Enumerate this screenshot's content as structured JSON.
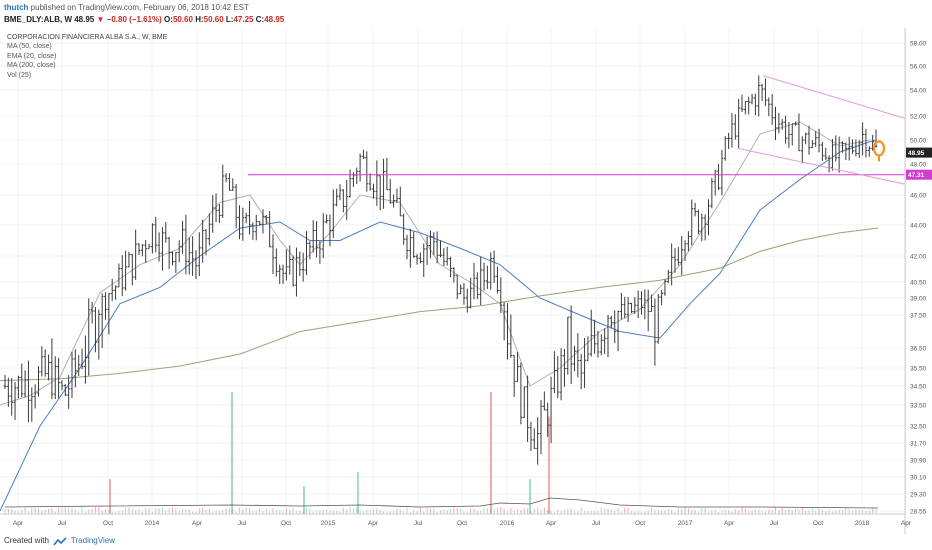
{
  "header": {
    "user": "thutch",
    "published": "published on TradingView.com, February 06, 2018 10:42 EST",
    "symbol": "BME_DLY:ALB, W",
    "last": "48.95",
    "change": "−0.80 (−1.61%)",
    "open_label": "O:",
    "open": "50.60",
    "high_label": "H:",
    "high": "50.60",
    "low_label": "L:",
    "low": "47.25",
    "close_label": "C:",
    "close": "48.95"
  },
  "legend": {
    "title": "CORPORACION FINANCIERA ALBA S.A., W, BME",
    "items": [
      "MA (50, close)",
      "EMA (20, close)",
      "MA (200, close)",
      "Vol (25)"
    ]
  },
  "footer": {
    "created_with": "Created with",
    "brand": "TradingView"
  },
  "colors": {
    "bars": "#3a3a3a",
    "ma50": "#4a7fc1",
    "ema20": "#b0b0b0",
    "ma200": "#8fa878",
    "channel": "#e59ad8",
    "support": "#d23cd2",
    "vol_up": "#66c2a5",
    "vol_down": "#e57373",
    "marker": "#f5941d"
  },
  "chart_data": {
    "type": "ohlc",
    "y_axis": {
      "min": 28.55,
      "max": 58.0,
      "ticks": [
        "58.00",
        "56.00",
        "54.00",
        "52.00",
        "50.00",
        "48.00",
        "46.00",
        "44.00",
        "42.00",
        "40.50",
        "39.00",
        "37.50",
        "36.50",
        "35.50",
        "34.50",
        "33.50",
        "32.50",
        "31.70",
        "30.90",
        "30.10",
        "29.30",
        "28.55"
      ],
      "price_labels": [
        "48.95",
        "47.31"
      ]
    },
    "x_axis": {
      "ticks": [
        "Apr",
        "Jul",
        "Oct",
        "2014",
        "Apr",
        "Jul",
        "Oct",
        "2015",
        "Apr",
        "Jul",
        "Oct",
        "2016",
        "Apr",
        "Jul",
        "Oct",
        "2017",
        "Apr",
        "Jul",
        "Oct",
        "2018",
        "Apr"
      ],
      "start": "2013-03-01",
      "end": "2018-04-15"
    },
    "ohlc_weekly_close_sketch": [
      [
        "2013-03",
        34.5
      ],
      [
        "2013-05",
        34.8
      ],
      [
        "2013-06",
        35.2
      ],
      [
        "2013-07",
        34.0
      ],
      [
        "2013-08",
        35.8
      ],
      [
        "2013-09",
        37.5
      ],
      [
        "2013-10",
        39.5
      ],
      [
        "2013-11",
        40.8
      ],
      [
        "2013-12",
        42.3
      ],
      [
        "2014-01",
        43.8
      ],
      [
        "2014-02",
        42.5
      ],
      [
        "2014-03",
        42.8
      ],
      [
        "2014-04",
        41.5
      ],
      [
        "2014-05",
        44.5
      ],
      [
        "2014-06",
        46.8
      ],
      [
        "2014-07",
        43.5
      ],
      [
        "2014-08",
        44.8
      ],
      [
        "2014-09",
        43.0
      ],
      [
        "2014-10",
        40.5
      ],
      [
        "2014-11",
        41.8
      ],
      [
        "2014-12",
        42.8
      ],
      [
        "2015-01",
        44.5
      ],
      [
        "2015-02",
        46.0
      ],
      [
        "2015-03",
        48.5
      ],
      [
        "2015-04",
        47.0
      ],
      [
        "2015-05",
        46.0
      ],
      [
        "2015-06",
        43.5
      ],
      [
        "2015-07",
        42.5
      ],
      [
        "2015-08",
        43.0
      ],
      [
        "2015-09",
        41.0
      ],
      [
        "2015-10",
        39.0
      ],
      [
        "2015-11",
        40.0
      ],
      [
        "2015-12",
        42.0
      ],
      [
        "2016-01",
        37.0
      ],
      [
        "2016-02",
        33.5
      ],
      [
        "2016-03",
        32.0
      ],
      [
        "2016-04",
        34.0
      ],
      [
        "2016-05",
        36.5
      ],
      [
        "2016-06",
        35.0
      ],
      [
        "2016-07",
        37.0
      ],
      [
        "2016-08",
        38.0
      ],
      [
        "2016-09",
        37.5
      ],
      [
        "2016-10",
        38.5
      ],
      [
        "2016-11",
        37.5
      ],
      [
        "2016-12",
        41.0
      ],
      [
        "2017-01",
        44.0
      ],
      [
        "2017-02",
        44.5
      ],
      [
        "2017-03",
        46.5
      ],
      [
        "2017-04",
        50.5
      ],
      [
        "2017-05",
        52.5
      ],
      [
        "2017-06",
        54.0
      ],
      [
        "2017-07",
        52.0
      ],
      [
        "2017-08",
        50.5
      ],
      [
        "2017-09",
        50.0
      ],
      [
        "2017-10",
        49.5
      ],
      [
        "2017-11",
        48.5
      ],
      [
        "2017-12",
        49.0
      ],
      [
        "2018-01",
        50.5
      ],
      [
        "2018-02",
        48.95
      ]
    ],
    "ema20": [
      [
        0,
        33.5
      ],
      [
        30,
        34.0
      ],
      [
        60,
        35.0
      ],
      [
        100,
        39.5
      ],
      [
        140,
        41.5
      ],
      [
        180,
        42.5
      ],
      [
        220,
        45.5
      ],
      [
        250,
        46.0
      ],
      [
        280,
        43.0
      ],
      [
        300,
        41.5
      ],
      [
        330,
        43.5
      ],
      [
        360,
        46.0
      ],
      [
        400,
        45.5
      ],
      [
        440,
        41.5
      ],
      [
        470,
        40.5
      ],
      [
        500,
        38.5
      ],
      [
        530,
        34.5
      ],
      [
        560,
        35.5
      ],
      [
        600,
        37.0
      ],
      [
        640,
        38.0
      ],
      [
        680,
        41.5
      ],
      [
        720,
        45.5
      ],
      [
        760,
        50.5
      ],
      [
        800,
        51.5
      ],
      [
        840,
        49.5
      ],
      [
        870,
        50.0
      ]
    ],
    "ma50": [
      [
        0,
        27.5
      ],
      [
        40,
        32.5
      ],
      [
        80,
        35.5
      ],
      [
        120,
        38.5
      ],
      [
        160,
        40.0
      ],
      [
        200,
        42.0
      ],
      [
        240,
        43.8
      ],
      [
        280,
        44.2
      ],
      [
        310,
        43.0
      ],
      [
        340,
        43.0
      ],
      [
        380,
        44.2
      ],
      [
        420,
        43.5
      ],
      [
        460,
        42.5
      ],
      [
        500,
        41.5
      ],
      [
        540,
        39.0
      ],
      [
        580,
        37.5
      ],
      [
        620,
        37.0
      ],
      [
        660,
        36.8
      ],
      [
        690,
        38.5
      ],
      [
        720,
        41.0
      ],
      [
        760,
        45.0
      ],
      [
        800,
        47.0
      ],
      [
        840,
        49.0
      ],
      [
        875,
        50.0
      ]
    ],
    "ma200": [
      [
        0,
        34.8
      ],
      [
        60,
        34.9
      ],
      [
        120,
        35.2
      ],
      [
        180,
        35.6
      ],
      [
        240,
        36.2
      ],
      [
        300,
        37.0
      ],
      [
        360,
        37.3
      ],
      [
        420,
        37.8
      ],
      [
        480,
        38.3
      ],
      [
        540,
        39.2
      ],
      [
        600,
        40.0
      ],
      [
        660,
        40.6
      ],
      [
        720,
        41.3
      ],
      [
        760,
        42.3
      ],
      [
        800,
        43.0
      ],
      [
        840,
        43.5
      ],
      [
        878,
        43.8
      ]
    ],
    "support_level": 47.31,
    "channel_upper": [
      [
        763,
        55.2
      ],
      [
        905,
        51.8
      ]
    ],
    "channel_lower": [
      [
        738,
        49.3
      ],
      [
        905,
        46.7
      ]
    ],
    "volume_spikes": [
      {
        "x": 232,
        "h": 0.35,
        "dir": "up"
      },
      {
        "x": 491,
        "h": 0.35,
        "dir": "down"
      },
      {
        "x": 549,
        "h": 0.28,
        "dir": "down"
      },
      {
        "x": 358,
        "h": 0.12,
        "dir": "up"
      },
      {
        "x": 304,
        "h": 0.08,
        "dir": "up"
      },
      {
        "x": 530,
        "h": 0.1,
        "dir": "up"
      },
      {
        "x": 110,
        "h": 0.1,
        "dir": "down"
      }
    ]
  }
}
